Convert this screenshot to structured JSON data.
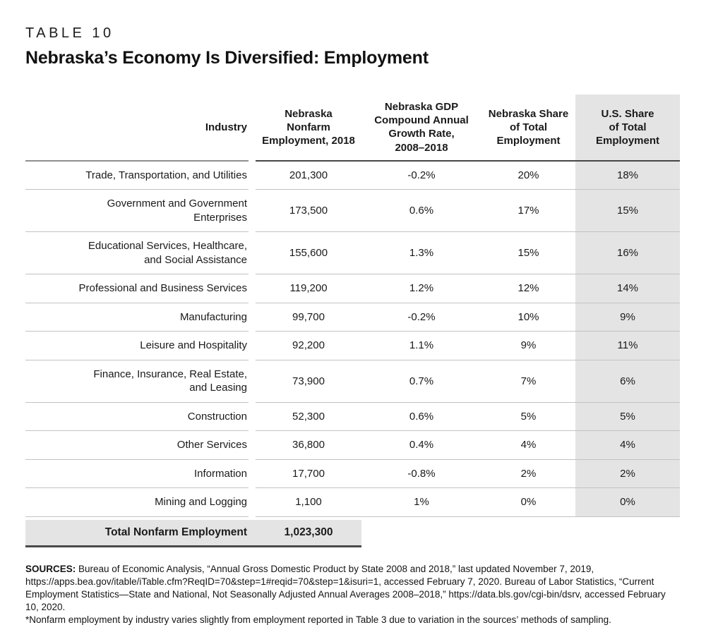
{
  "header": {
    "kicker": "TABLE 10",
    "title": "Nebraska’s Economy Is Diversified: Employment"
  },
  "table": {
    "headers": [
      "Industry",
      "Nebraska\nNonfarm\nEmployment, 2018",
      "Nebraska GDP\nCompound Annual\nGrowth Rate,\n2008–2018",
      "Nebraska Share\nof Total\nEmployment",
      "U.S. Share\nof Total\nEmployment"
    ],
    "rows": [
      {
        "industry": "Trade, Transportation, and Utilities",
        "values": [
          "201,300",
          "-0.2%",
          "20%",
          "18%"
        ]
      },
      {
        "industry": "Government and Government\nEnterprises",
        "values": [
          "173,500",
          "0.6%",
          "17%",
          "15%"
        ]
      },
      {
        "industry": "Educational Services, Healthcare,\nand Social Assistance",
        "values": [
          "155,600",
          "1.3%",
          "15%",
          "16%"
        ]
      },
      {
        "industry": "Professional and Business Services",
        "values": [
          "119,200",
          "1.2%",
          "12%",
          "14%"
        ]
      },
      {
        "industry": "Manufacturing",
        "values": [
          "99,700",
          "-0.2%",
          "10%",
          "9%"
        ]
      },
      {
        "industry": "Leisure and Hospitality",
        "values": [
          "92,200",
          "1.1%",
          "9%",
          "11%"
        ]
      },
      {
        "industry": "Finance, Insurance, Real Estate,\nand Leasing",
        "values": [
          "73,900",
          "0.7%",
          "7%",
          "6%"
        ]
      },
      {
        "industry": "Construction",
        "values": [
          "52,300",
          "0.6%",
          "5%",
          "5%"
        ]
      },
      {
        "industry": "Other Services",
        "values": [
          "36,800",
          "0.4%",
          "4%",
          "4%"
        ]
      },
      {
        "industry": "Information",
        "values": [
          "17,700",
          "-0.8%",
          "2%",
          "2%"
        ]
      },
      {
        "industry": "Mining and Logging",
        "values": [
          "1,100",
          "1%",
          "0%",
          "0%"
        ]
      }
    ],
    "total": {
      "label": "Total Nonfarm Employment",
      "value": "1,023,300"
    }
  },
  "footer": {
    "sources_label": "SOURCES:",
    "sources_text": " Bureau of Economic Analysis, “Annual Gross Domestic Product by State 2008 and 2018,” last updated November 7, 2019, https://apps.bea.gov/itable/iTable.cfm?ReqID=70&step=1#reqid=70&step=1&isuri=1, accessed February 7, 2020. Bureau of Labor Statistics, “Current Employment Statistics—State and National, Not Seasonally Adjusted Annual Averages 2008–2018,” https://data.bls.gov/cgi-bin/dsrv, accessed February 10, 2020.",
    "note": "*Nonfarm employment by industry varies slightly from employment reported in Table 3 due to variation in the sources’ methods of sampling."
  },
  "colors": {
    "shaded_column_bg": "#e4e4e4",
    "total_row_bg": "#e4e4e4",
    "row_divider": "#c2c2c2",
    "header_rule_dark": "#464646",
    "header_rule_light": "#909090",
    "total_rule": "#4a4a4a",
    "text": "#1a1a1a"
  },
  "chart_data": {
    "type": "table",
    "title": "Nebraska’s Economy Is Diversified: Employment",
    "table_number": "TABLE 10",
    "columns": [
      "Industry",
      "Nebraska Nonfarm Employment, 2018",
      "Nebraska GDP Compound Annual Growth Rate, 2008–2018",
      "Nebraska Share of Total Employment",
      "U.S. Share of Total Employment"
    ],
    "rows": [
      [
        "Trade, Transportation, and Utilities",
        "201,300",
        "-0.2%",
        "20%",
        "18%"
      ],
      [
        "Government and Government Enterprises",
        "173,500",
        "0.6%",
        "17%",
        "15%"
      ],
      [
        "Educational Services, Healthcare, and Social Assistance",
        "155,600",
        "1.3%",
        "15%",
        "16%"
      ],
      [
        "Professional and Business Services",
        "119,200",
        "1.2%",
        "12%",
        "14%"
      ],
      [
        "Manufacturing",
        "99,700",
        "-0.2%",
        "10%",
        "9%"
      ],
      [
        "Leisure and Hospitality",
        "92,200",
        "1.1%",
        "9%",
        "11%"
      ],
      [
        "Finance, Insurance, Real Estate, and Leasing",
        "73,900",
        "0.7%",
        "7%",
        "6%"
      ],
      [
        "Construction",
        "52,300",
        "0.6%",
        "5%",
        "5%"
      ],
      [
        "Other Services",
        "36,800",
        "0.4%",
        "4%",
        "4%"
      ],
      [
        "Information",
        "17,700",
        "-0.8%",
        "2%",
        "2%"
      ],
      [
        "Mining and Logging",
        "1,100",
        "1%",
        "0%",
        "0%"
      ]
    ],
    "total_row": [
      "Total Nonfarm Employment",
      "1,023,300",
      "",
      "",
      ""
    ],
    "layout_hints": {
      "shaded_column": "U.S. Share of Total Employment",
      "industry_column_alignment": "right",
      "value_alignment": "center"
    }
  }
}
